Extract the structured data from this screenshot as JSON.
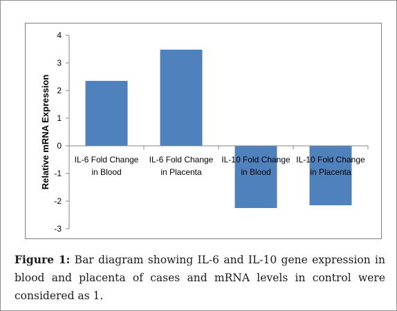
{
  "chart_data": {
    "type": "bar",
    "ylabel": "Relative mRNA Expression",
    "ylim": [
      -3,
      4
    ],
    "yticks": [
      -3,
      -2,
      -1,
      0,
      1,
      2,
      3,
      4
    ],
    "categories": [
      [
        "IL-6 Fold Change",
        "in Blood"
      ],
      [
        "IL-6 Fold Change",
        "in Placenta"
      ],
      [
        "IL-10 Fold Change",
        "in Blood"
      ],
      [
        "IL-10 Fold Change",
        "in Placenta"
      ]
    ],
    "values": [
      2.35,
      3.48,
      -2.25,
      -2.15
    ],
    "bar_color": "#4f81bd",
    "grid": false,
    "legend": "none"
  },
  "caption": {
    "label": "Figure 1:",
    "text": " Bar diagram showing IL-6 and IL-10 gene expression in blood and placenta of cases and mRNA levels in control were considered as 1."
  }
}
